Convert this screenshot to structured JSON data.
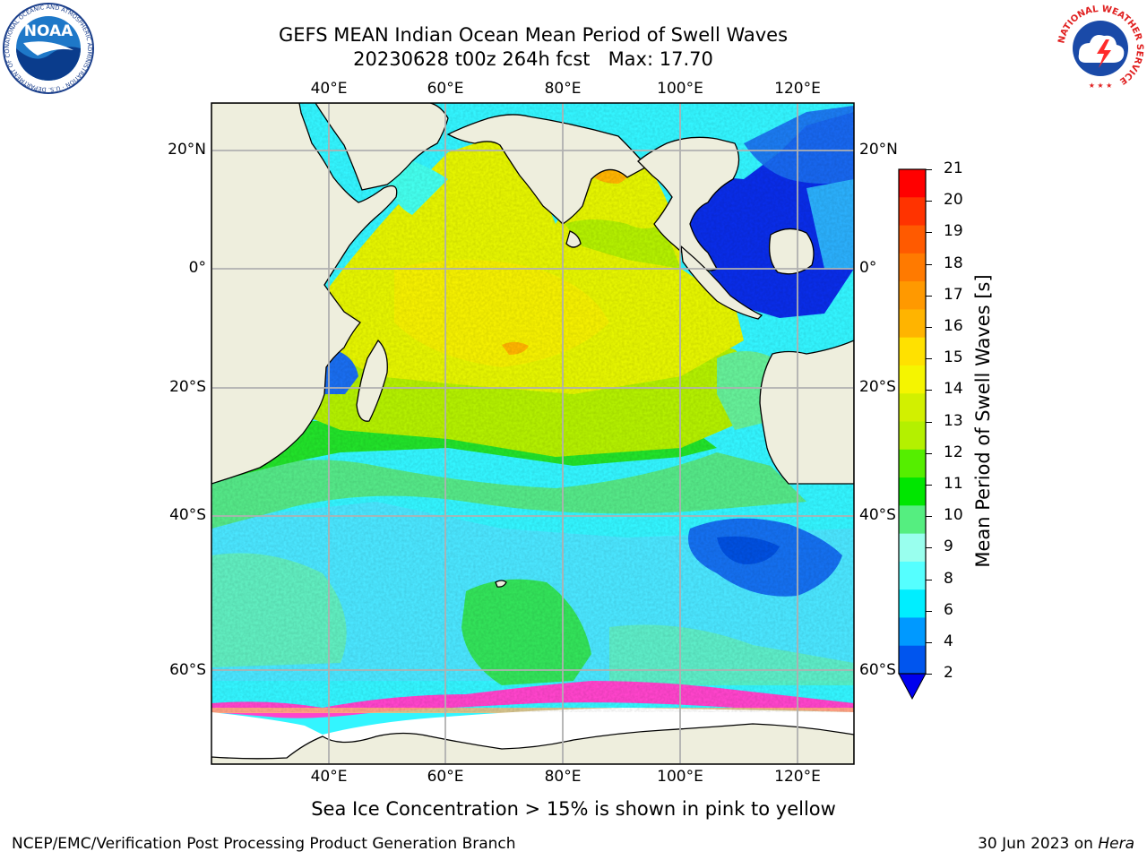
{
  "header": {
    "title_line1": "GEFS MEAN Indian Ocean Mean Period of Swell Waves",
    "title_line2": "20230628 t00z 264h fcst   Max: 17.70"
  },
  "logos": {
    "noaa_text": "NOAA",
    "noaa_ring_text": "NATIONAL OCEANIC AND ATMOSPHERIC ADMINISTRATION · U.S. DEPARTMENT OF COMMERCE",
    "nws_ring_text": "NATIONAL WEATHER SERVICE"
  },
  "map": {
    "lon_labels": [
      "40°E",
      "60°E",
      "80°E",
      "100°E",
      "120°E"
    ],
    "lat_labels": [
      "20°N",
      "0°",
      "20°S",
      "40°S",
      "60°S"
    ]
  },
  "colorbar": {
    "label": "Mean Period of Swell Waves [s]",
    "ticks": [
      "21",
      "20",
      "19",
      "18",
      "17",
      "16",
      "15",
      "14",
      "13",
      "12",
      "11",
      "10",
      "9",
      "8",
      "6",
      "4",
      "2"
    ],
    "colors": [
      "#ff0000",
      "#ff3300",
      "#ff5a00",
      "#ff7a00",
      "#ff9900",
      "#ffb400",
      "#ffe100",
      "#f5f500",
      "#d2f000",
      "#b4f000",
      "#55ee00",
      "#00e600",
      "#55ee80",
      "#99ffee",
      "#55ffff",
      "#00eeff",
      "#0099ff",
      "#0055ee"
    ],
    "underflow_color": "#0000ee"
  },
  "colors": {
    "land": "#eeeedd",
    "grid": "#b0b0b0",
    "sea_ice": "#ff44cc"
  },
  "caption": "Sea Ice Concentration > 15% is shown in pink to yellow",
  "footer": {
    "left": "NCEP/EMC/Verification Post Processing Product Generation Branch",
    "right_prefix": "30 Jun 2023 on ",
    "right_host": "Hera"
  }
}
